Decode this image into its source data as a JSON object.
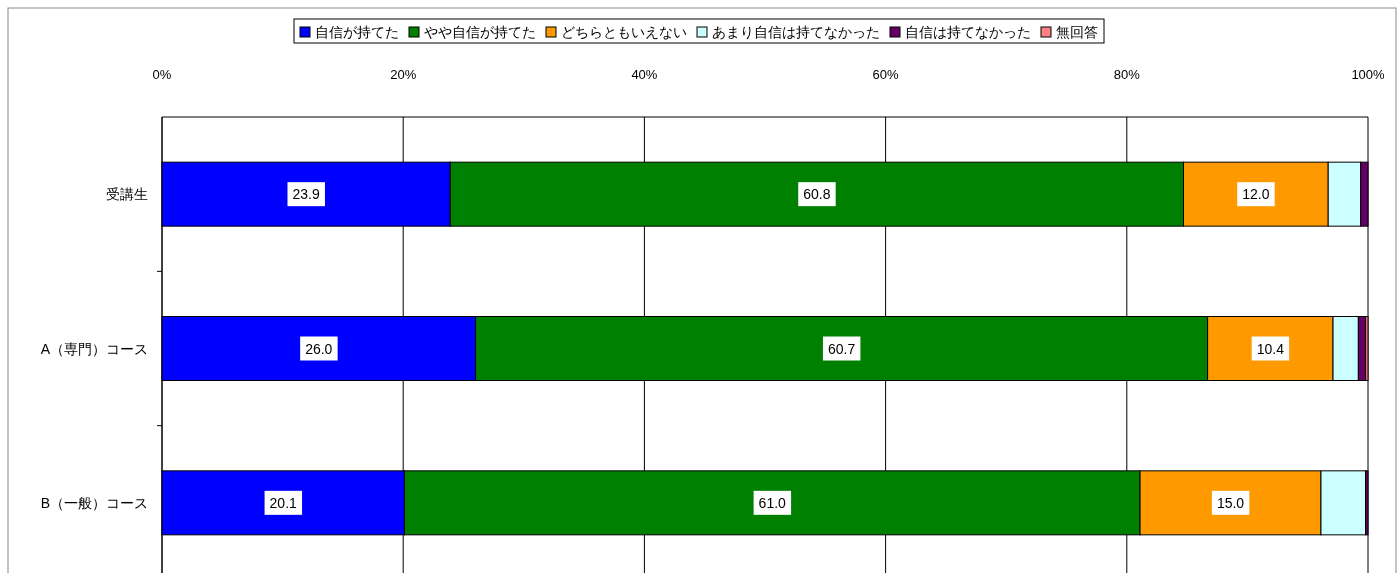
{
  "chart_data": {
    "type": "bar",
    "orientation": "horizontal",
    "stacked": true,
    "categories": [
      "受講生",
      "A（専門）コース",
      "B（一般）コース"
    ],
    "series": [
      {
        "name": "自信が持てた",
        "color": "#0000ff",
        "values": [
          23.9,
          26.0,
          20.1
        ],
        "value_labels": [
          "23.9",
          "26.0",
          "20.1"
        ]
      },
      {
        "name": "やや自信が持てた",
        "color": "#008000",
        "values": [
          60.8,
          60.7,
          61.0
        ],
        "value_labels": [
          "60.8",
          "60.7",
          "61.0"
        ]
      },
      {
        "name": "どちらともいえない",
        "color": "#ff9900",
        "values": [
          12.0,
          10.4,
          15.0
        ],
        "value_labels": [
          "12.0",
          "10.4",
          "15.0"
        ]
      },
      {
        "name": "あまり自信は持てなかった",
        "color": "#ccffff",
        "values": [
          2.7,
          2.1,
          3.7
        ],
        "value_labels": [
          null,
          null,
          null
        ]
      },
      {
        "name": "自信は持てなかった",
        "color": "#660066",
        "values": [
          0.6,
          0.6,
          0.2
        ],
        "value_labels": [
          null,
          null,
          null
        ]
      },
      {
        "name": "無回答",
        "color": "#ff8080",
        "values": [
          0,
          0.2,
          0
        ],
        "value_labels": [
          null,
          null,
          null
        ]
      }
    ],
    "xlim": [
      0,
      100
    ],
    "xticks": [
      {
        "value": 0,
        "label": "0%"
      },
      {
        "value": 20,
        "label": "20%"
      },
      {
        "value": 40,
        "label": "40%"
      },
      {
        "value": 60,
        "label": "60%"
      },
      {
        "value": 80,
        "label": "80%"
      },
      {
        "value": 100,
        "label": "100%"
      }
    ],
    "grid": "x",
    "legend": "top"
  }
}
